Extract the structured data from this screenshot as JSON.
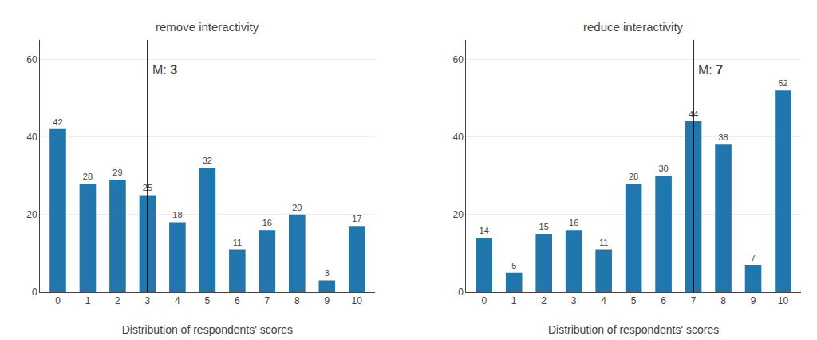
{
  "chart_data": [
    {
      "type": "bar",
      "title": "remove interactivity",
      "xlabel": "Distribution of respondents' scores",
      "x": [
        0,
        1,
        2,
        3,
        4,
        5,
        6,
        7,
        8,
        9,
        10
      ],
      "values": [
        42,
        28,
        29,
        25,
        18,
        32,
        11,
        16,
        20,
        3,
        17
      ],
      "color": "#2176ae",
      "data_labels": true,
      "median": 3,
      "median_label": "M:",
      "xlim": [
        -0.6,
        10.6
      ],
      "xticks": [
        0,
        1,
        2,
        3,
        4,
        5,
        6,
        7,
        8,
        9,
        10
      ],
      "ylim": [
        0,
        65
      ],
      "yticks": [
        0,
        20,
        40,
        60
      ],
      "grid": true
    },
    {
      "type": "bar",
      "title": "reduce interactivity",
      "xlabel": "Distribution of respondents' scores",
      "x": [
        0,
        1,
        2,
        3,
        4,
        5,
        6,
        7,
        8,
        9,
        10
      ],
      "values": [
        14,
        5,
        15,
        16,
        11,
        28,
        30,
        44,
        38,
        7,
        52
      ],
      "color": "#2176ae",
      "data_labels": true,
      "median": 7,
      "median_label": "M:",
      "xlim": [
        -0.6,
        10.6
      ],
      "xticks": [
        0,
        1,
        2,
        3,
        4,
        5,
        6,
        7,
        8,
        9,
        10
      ],
      "ylim": [
        0,
        65
      ],
      "yticks": [
        0,
        20,
        40,
        60
      ],
      "grid": true
    }
  ]
}
